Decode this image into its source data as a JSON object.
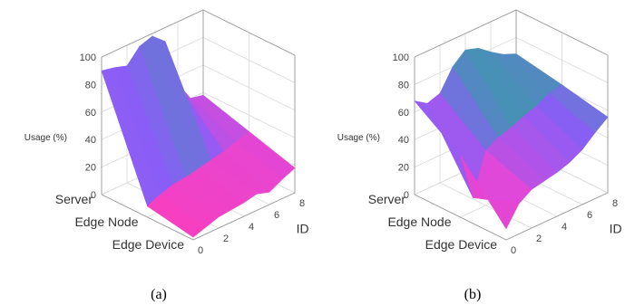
{
  "chart_data": [
    {
      "type": "surface3d",
      "caption": "(a)",
      "xlabel": "ID",
      "ylabel": "",
      "zlabel": "Usage (%)",
      "x_ticks": [
        0,
        2,
        4,
        6,
        8
      ],
      "y_categories": [
        "Edge Device",
        "Edge Node",
        "Server"
      ],
      "z_ticks": [
        0,
        20,
        40,
        60,
        80,
        100
      ],
      "xlim": [
        0,
        8
      ],
      "zlim": [
        0,
        100
      ],
      "colorscale": [
        "#ff3db8",
        "#df48d8",
        "#8a5ef6",
        "#2fa49e",
        "#1a8f6d"
      ],
      "x": [
        0,
        1,
        2,
        3,
        4,
        5,
        6,
        7,
        8
      ],
      "rows": [
        {
          "category": "Edge Device",
          "z": [
            2,
            5,
            8,
            9,
            10,
            12,
            9,
            14,
            18
          ]
        },
        {
          "category": "Edge Node",
          "z": [
            8,
            12,
            15,
            16,
            18,
            20,
            22,
            25,
            28
          ]
        },
        {
          "category": "Server",
          "z": [
            90,
            88,
            85,
            95,
            98,
            90,
            55,
            40,
            38
          ]
        }
      ]
    },
    {
      "type": "surface3d",
      "caption": "(b)",
      "xlabel": "ID",
      "ylabel": "",
      "zlabel": "Usage (%)",
      "x_ticks": [
        0,
        2,
        4,
        6,
        8
      ],
      "y_categories": [
        "Edge Device",
        "Edge Node",
        "Server"
      ],
      "z_ticks": [
        0,
        20,
        40,
        60,
        80,
        100
      ],
      "xlim": [
        0,
        8
      ],
      "zlim": [
        0,
        100
      ],
      "colorscale": [
        "#ff3db8",
        "#df48d8",
        "#8a5ef6",
        "#2fa49e",
        "#1a8f6d"
      ],
      "x": [
        0,
        1,
        2,
        3,
        4,
        5,
        6,
        7,
        8
      ],
      "rows": [
        {
          "category": "Edge Device",
          "z": [
            8,
            22,
            28,
            30,
            32,
            35,
            40,
            48,
            55
          ]
        },
        {
          "category": "Edge Node",
          "z": [
            45,
            10,
            40,
            45,
            48,
            52,
            55,
            60,
            62
          ]
        },
        {
          "category": "Server",
          "z": [
            68,
            62,
            65,
            80,
            88,
            85,
            78,
            72,
            68
          ]
        }
      ]
    }
  ]
}
